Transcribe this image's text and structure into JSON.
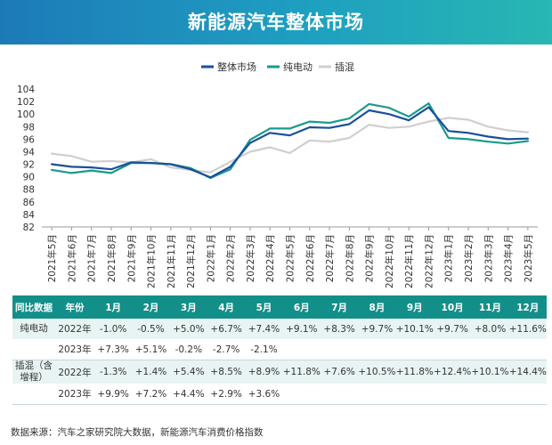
{
  "title": "新能源汽车整体市场",
  "chart_data": {
    "type": "line",
    "title": "新能源汽车整体市场",
    "categories": [
      "2021年5月",
      "2021年6月",
      "2021年7月",
      "2021年8月",
      "2021年9月",
      "2021年10月",
      "2021年11月",
      "2021年12月",
      "2022年1月",
      "2022年2月",
      "2022年3月",
      "2022年4月",
      "2022年5月",
      "2022年6月",
      "2022年7月",
      "2022年8月",
      "2022年9月",
      "2022年10月",
      "2022年11月",
      "2022年12月",
      "2023年1月",
      "2023年2月",
      "2023年3月",
      "2023年4月",
      "2023年5月"
    ],
    "ylim": [
      82,
      104
    ],
    "yticks": [
      82,
      84,
      86,
      88,
      90,
      92,
      94,
      96,
      98,
      100,
      102,
      104
    ],
    "xlabel": "",
    "ylabel": "",
    "legend_position": "top-right",
    "series": [
      {
        "name": "整体市场",
        "color": "#1a4f9c",
        "values": [
          92.0,
          91.6,
          91.5,
          91.2,
          92.3,
          92.2,
          92.0,
          91.2,
          89.9,
          91.6,
          95.4,
          97.0,
          96.6,
          97.9,
          97.8,
          98.4,
          100.6,
          100.0,
          99.0,
          101.1,
          97.3,
          97.0,
          96.4,
          96.0,
          96.1
        ]
      },
      {
        "name": "纯电动",
        "color": "#1a9a8c",
        "values": [
          91.1,
          90.6,
          91.0,
          90.6,
          92.2,
          92.2,
          92.0,
          91.4,
          89.8,
          91.2,
          95.9,
          97.7,
          97.7,
          98.8,
          98.6,
          99.3,
          101.6,
          101.0,
          99.6,
          101.7,
          96.2,
          96.0,
          95.6,
          95.3,
          95.7
        ]
      },
      {
        "name": "插混",
        "color": "#cfcfcf",
        "values": [
          93.7,
          93.3,
          92.4,
          92.5,
          92.3,
          92.8,
          91.5,
          91.1,
          90.7,
          92.4,
          94.0,
          94.7,
          93.8,
          95.8,
          95.6,
          96.2,
          98.3,
          97.8,
          98.0,
          98.8,
          99.4,
          99.1,
          98.0,
          97.4,
          97.1
        ]
      }
    ]
  },
  "table": {
    "headers": [
      "同比数据",
      "年份",
      "1月",
      "2月",
      "3月",
      "4月",
      "5月",
      "6月",
      "7月",
      "8月",
      "9月",
      "10月",
      "11月",
      "12月"
    ],
    "groups": [
      {
        "name": "纯电动",
        "rows": [
          {
            "year": "2022年",
            "values": [
              "-1.0%",
              "-0.5%",
              "+5.0%",
              "+6.7%",
              "+7.4%",
              "+9.1%",
              "+8.3%",
              "+9.7%",
              "+10.1%",
              "+9.7%",
              "+8.0%",
              "+11.6%"
            ]
          },
          {
            "year": "2023年",
            "values": [
              "+7.3%",
              "+5.1%",
              "-0.2%",
              "-2.7%",
              "-2.1%",
              "",
              "",
              "",
              "",
              "",
              "",
              ""
            ]
          }
        ]
      },
      {
        "name": "插混（含增程）",
        "rows": [
          {
            "year": "2022年",
            "values": [
              "-1.3%",
              "+1.4%",
              "+5.4%",
              "+8.5%",
              "+8.9%",
              "+11.8%",
              "+7.6%",
              "+10.5%",
              "+11.8%",
              "+12.4%",
              "+10.1%",
              "+14.4%"
            ]
          },
          {
            "year": "2023年",
            "values": [
              "+9.9%",
              "+7.2%",
              "+4.4%",
              "+2.9%",
              "+3.6%",
              "",
              "",
              "",
              "",
              "",
              "",
              ""
            ]
          }
        ]
      }
    ]
  },
  "source_note": "数据来源：汽车之家研究院大数据，新能源汽车消费价格指数"
}
